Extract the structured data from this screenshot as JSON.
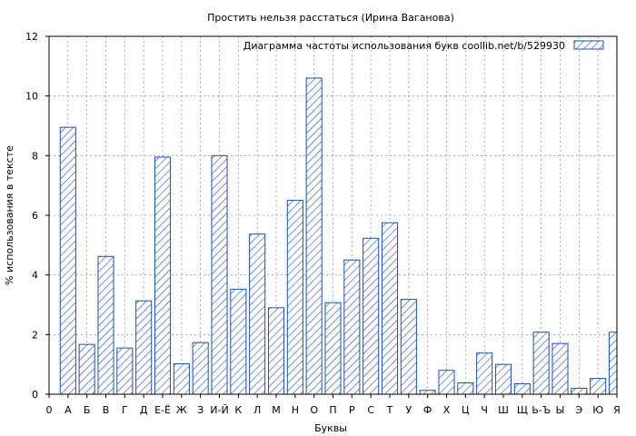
{
  "chart_data": {
    "type": "bar",
    "title": "Простить нельзя расстаться (Ирина Ваганова)",
    "xlabel": "Буквы",
    "ylabel": "% использования в тексте",
    "legend": {
      "label": "Диаграмма частоты использования букв  coollib.net/b/529930",
      "placement": "top-right"
    },
    "ylim": [
      0,
      12
    ],
    "yticks": [
      "0",
      "2",
      "4",
      "6",
      "8",
      "10",
      "12"
    ],
    "x_axis_labels": [
      "0",
      "А",
      "Б",
      "В",
      "Г",
      "Д",
      "Е-Ё",
      "Ж",
      "З",
      "И-Й",
      "К",
      "Л",
      "М",
      "Н",
      "О",
      "П",
      "Р",
      "С",
      "Т",
      "У",
      "Ф",
      "Х",
      "Ц",
      "Ч",
      "Ш",
      "Щ",
      "Ь-Ъ",
      "Ы",
      "Э",
      "Ю",
      "Я"
    ],
    "categories": [
      "А",
      "Б",
      "В",
      "Г",
      "Д",
      "Е-Ё",
      "Ж",
      "З",
      "И-Й",
      "К",
      "Л",
      "М",
      "Н",
      "О",
      "П",
      "Р",
      "С",
      "Т",
      "У",
      "Ф",
      "Х",
      "Ц",
      "Ч",
      "Ш",
      "Щ",
      "Ь-Ъ",
      "Ы",
      "Э",
      "Ю",
      "Я"
    ],
    "values": [
      8.95,
      1.67,
      4.62,
      1.55,
      3.13,
      7.95,
      1.02,
      1.73,
      8.0,
      3.52,
      5.37,
      2.9,
      6.5,
      10.6,
      3.07,
      4.5,
      5.23,
      5.75,
      3.18,
      0.13,
      0.8,
      0.38,
      1.38,
      1.0,
      0.35,
      2.08,
      1.7,
      0.2,
      0.53,
      2.08
    ],
    "grid": true,
    "colors": {
      "bar_stroke": "#1f4fa8",
      "bar_hatch": "#1f4fa8",
      "grid": "#9a9a9a"
    }
  }
}
